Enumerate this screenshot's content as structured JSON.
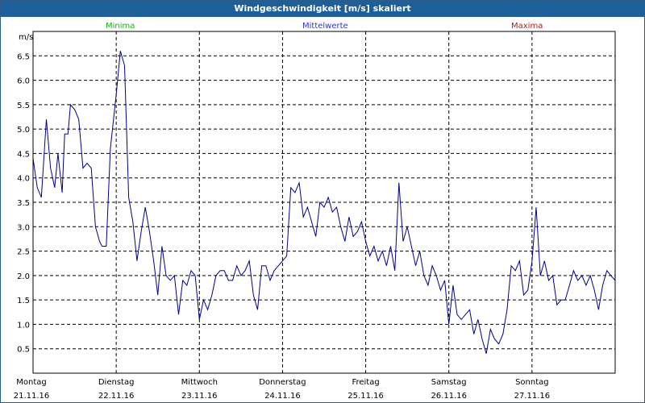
{
  "window": {
    "title": "Windgeschwindigkeit [m/s] skaliert"
  },
  "legend": [
    {
      "label": "Minima",
      "color": "#22aa22"
    },
    {
      "label": "Mittelwerte",
      "color": "#3333cc"
    },
    {
      "label": "Maxima",
      "color": "#aa2222"
    }
  ],
  "chart_data": {
    "type": "line",
    "title": "Windgeschwindigkeit [m/s] skaliert",
    "ylabel": "m/s",
    "xlabel": "",
    "ylim": [
      0,
      7.0
    ],
    "yticks": [
      "0.5",
      "1.0",
      "1.5",
      "2.0",
      "2.5",
      "3.0",
      "3.5",
      "4.0",
      "4.5",
      "5.0",
      "5.5",
      "6.0",
      "6.5"
    ],
    "xlim": [
      0,
      7
    ],
    "x_day_labels": [
      {
        "day": "Montag",
        "date": "21.11.16"
      },
      {
        "day": "Dienstag",
        "date": "22.11.16"
      },
      {
        "day": "Mittwoch",
        "date": "23.11.16"
      },
      {
        "day": "Donnerstag",
        "date": "24.11.16"
      },
      {
        "day": "Freitag",
        "date": "25.11.16"
      },
      {
        "day": "Samstag",
        "date": "26.11.16"
      },
      {
        "day": "Sonntag",
        "date": "27.11.16"
      }
    ],
    "grid": true,
    "series": [
      {
        "name": "Mittelwerte",
        "color": "#00008b",
        "x": [
          0.0,
          0.05,
          0.1,
          0.16,
          0.21,
          0.26,
          0.3,
          0.35,
          0.38,
          0.42,
          0.45,
          0.5,
          0.55,
          0.6,
          0.65,
          0.7,
          0.75,
          0.8,
          0.83,
          0.88,
          0.93,
          1.0,
          1.05,
          1.1,
          1.15,
          1.2,
          1.25,
          1.3,
          1.35,
          1.4,
          1.45,
          1.5,
          1.55,
          1.6,
          1.65,
          1.7,
          1.75,
          1.8,
          1.85,
          1.9,
          1.95,
          2.0,
          2.05,
          2.1,
          2.15,
          2.2,
          2.25,
          2.3,
          2.35,
          2.4,
          2.45,
          2.5,
          2.55,
          2.6,
          2.65,
          2.7,
          2.75,
          2.8,
          2.85,
          2.9,
          2.95,
          3.0,
          3.05,
          3.1,
          3.15,
          3.2,
          3.25,
          3.3,
          3.35,
          3.4,
          3.45,
          3.5,
          3.55,
          3.6,
          3.65,
          3.7,
          3.75,
          3.8,
          3.85,
          3.9,
          3.95,
          4.0,
          4.05,
          4.1,
          4.15,
          4.2,
          4.25,
          4.3,
          4.35,
          4.4,
          4.45,
          4.5,
          4.55,
          4.6,
          4.65,
          4.7,
          4.75,
          4.8,
          4.85,
          4.9,
          4.95,
          5.0,
          5.05,
          5.1,
          5.15,
          5.2,
          5.25,
          5.3,
          5.35,
          5.4,
          5.45,
          5.5,
          5.55,
          5.6,
          5.65,
          5.7,
          5.75,
          5.8,
          5.85,
          5.9,
          5.95,
          6.0,
          6.05,
          6.1,
          6.15,
          6.2,
          6.25,
          6.3,
          6.35,
          6.4,
          6.45,
          6.5,
          6.55,
          6.6,
          6.65,
          6.7,
          6.75,
          6.8,
          6.85,
          6.9,
          6.95,
          7.0
        ],
        "values": [
          4.4,
          3.8,
          3.6,
          5.2,
          4.2,
          3.8,
          4.5,
          3.7,
          4.9,
          4.9,
          5.5,
          5.4,
          5.2,
          4.2,
          4.3,
          4.2,
          3.0,
          2.7,
          2.6,
          2.6,
          4.6,
          5.7,
          6.6,
          6.3,
          3.6,
          3.1,
          2.3,
          2.9,
          3.4,
          2.9,
          2.3,
          1.6,
          2.6,
          2.0,
          1.9,
          2.0,
          1.2,
          1.9,
          1.8,
          2.1,
          2.0,
          1.1,
          1.5,
          1.3,
          1.6,
          2.0,
          2.1,
          2.1,
          1.9,
          1.9,
          2.2,
          2.0,
          2.1,
          2.3,
          1.6,
          1.3,
          2.2,
          2.2,
          1.9,
          2.1,
          2.2,
          2.3,
          2.4,
          3.8,
          3.7,
          3.9,
          3.2,
          3.4,
          3.1,
          2.8,
          3.5,
          3.4,
          3.6,
          3.3,
          3.4,
          3.0,
          2.7,
          3.2,
          2.8,
          2.9,
          3.1,
          2.7,
          2.4,
          2.6,
          2.3,
          2.5,
          2.2,
          2.6,
          2.1,
          3.9,
          2.7,
          3.0,
          2.6,
          2.2,
          2.5,
          2.0,
          1.8,
          2.2,
          2.0,
          1.7,
          1.9,
          1.0,
          1.8,
          1.2,
          1.1,
          1.2,
          1.3,
          0.8,
          1.1,
          0.7,
          0.4,
          0.9,
          0.7,
          0.6,
          0.8,
          1.3,
          2.2,
          2.1,
          2.3,
          1.6,
          1.7,
          2.3,
          3.4,
          2.0,
          2.3,
          1.9,
          2.0,
          1.4,
          1.5,
          1.5,
          1.8,
          2.1,
          1.9,
          2.0,
          1.8,
          2.0,
          1.7,
          1.3,
          1.8,
          2.1,
          2.0,
          1.9
        ]
      }
    ]
  }
}
